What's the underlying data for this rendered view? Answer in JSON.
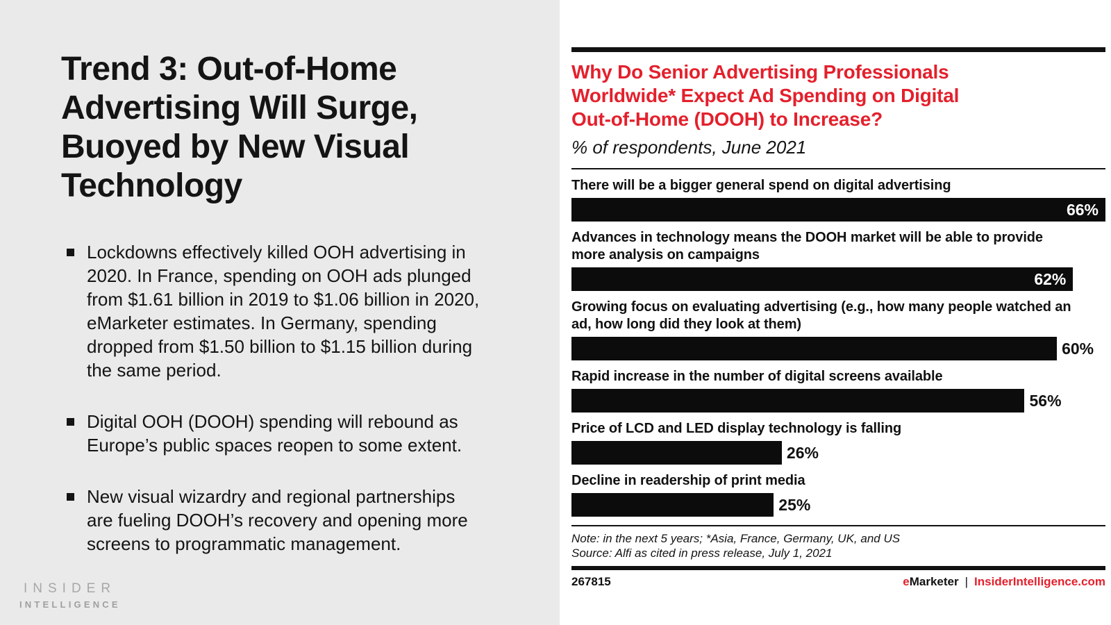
{
  "left_panel": {
    "title": "Trend 3: Out-of-Home\nAdvertising Will Surge,\nBuoyed by New Visual\nTechnology",
    "bullets": [
      "Lockdowns effectively killed OOH advertising in\n2020. In France, spending on OOH ads plunged\nfrom $1.61 billion in 2019 to $1.06 billion in 2020,\neMarketer estimates. In Germany, spending\ndropped from $1.50 billion to $1.15 billion during\nthe same period.",
      "Digital OOH (DOOH) spending will rebound as\nEurope’s public spaces reopen to some extent.",
      "New visual wizardry and regional partnerships\nare fueling DOOH’s recovery and opening more\nscreens to programmatic management."
    ],
    "logo": {
      "line1": "INSIDER",
      "line2": "INTELLIGENCE"
    }
  },
  "chart": {
    "footer": {
      "chart_id": "267815",
      "brand": {
        "e": "e",
        "marketer": "Marketer",
        "divider": "|",
        "site": "InsiderIntelligence.com"
      }
    },
    "colors": {
      "accent_red": "#e4202c",
      "bar_black": "#0c0c0c",
      "left_panel_bg": "#eaeaea",
      "logo_gray": "#a7a7a7"
    }
  },
  "chart_data": {
    "type": "bar",
    "orientation": "horizontal",
    "title": "Why Do Senior Advertising Professionals\nWorldwide* Expect Ad Spending on Digital\nOut-of-Home (DOOH) to Increase?",
    "subtitle": "% of respondents, June 2021",
    "categories": [
      "There will be a bigger general spend on digital advertising",
      "Advances in technology means the DOOH market will be able to provide\nmore analysis on campaigns",
      "Growing focus on evaluating advertising (e.g., how many people watched an\nad, how long did they look at them)",
      "Rapid increase in the number of digital screens available",
      "Price of LCD and LED display technology is falling",
      "Decline in readership of print media"
    ],
    "values": [
      66,
      62,
      60,
      56,
      26,
      25
    ],
    "unit": "%",
    "xlim": [
      0,
      66
    ],
    "bar_color": "#0c0c0c",
    "value_label_positions": [
      "inside",
      "inside",
      "outside",
      "outside",
      "outside",
      "outside"
    ],
    "grid": false,
    "legend": "none",
    "note": "Note: in the next 5 years; *Asia, France, Germany, UK, and US",
    "source": "Source: Alfi as cited in press release, July 1, 2021"
  }
}
